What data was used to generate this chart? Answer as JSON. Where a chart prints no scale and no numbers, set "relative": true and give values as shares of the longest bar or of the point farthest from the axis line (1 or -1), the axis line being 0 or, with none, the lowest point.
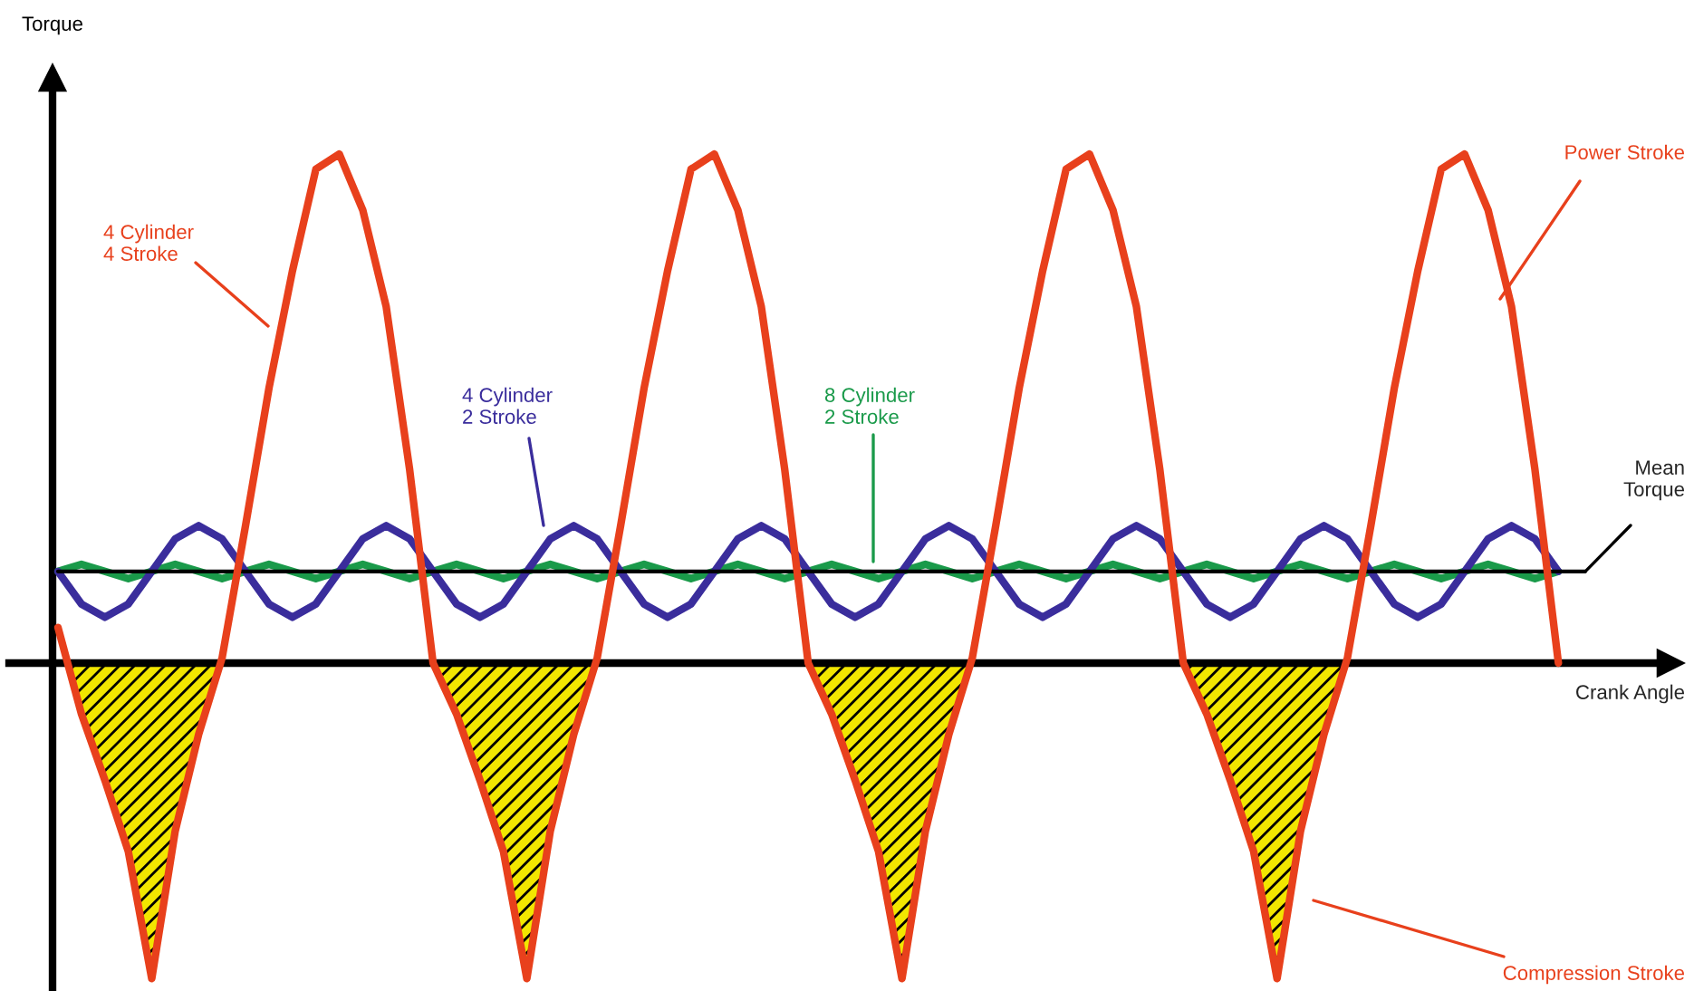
{
  "chart_data": {
    "type": "line",
    "relative": true,
    "xlabel": "Crank Angle",
    "categories": [
      null,
      null,
      null,
      null,
      null,
      null,
      null,
      null,
      null,
      null,
      null,
      null,
      null,
      null,
      null,
      null,
      null,
      null,
      null,
      null,
      null,
      null,
      null,
      null,
      null,
      null,
      null,
      null,
      null,
      null,
      null,
      null,
      null,
      null,
      null,
      null,
      null,
      null,
      null,
      null,
      null,
      null,
      null,
      null,
      null,
      null,
      null,
      null,
      null,
      null,
      null,
      null,
      null,
      null,
      null,
      null,
      null,
      null,
      null,
      null,
      null,
      null,
      null,
      null,
      null
    ],
    "series": [
      {
        "name": "8 Cylinder\n2 Stroke",
        "color": "#1a9a4a",
        "values": [
          0.18,
          0.194,
          0.18,
          0.166,
          0.18,
          0.194,
          0.18,
          0.166,
          0.18,
          0.194,
          0.18,
          0.166,
          0.18,
          0.194,
          0.18,
          0.166,
          0.18,
          0.194,
          0.18,
          0.166,
          0.18,
          0.194,
          0.18,
          0.166,
          0.18,
          0.194,
          0.18,
          0.166,
          0.18,
          0.194,
          0.18,
          0.166,
          0.18,
          0.194,
          0.18,
          0.166,
          0.18,
          0.194,
          0.18,
          0.166,
          0.18,
          0.194,
          0.18,
          0.166,
          0.18,
          0.194,
          0.18,
          0.166,
          0.18,
          0.194,
          0.18,
          0.166,
          0.18,
          0.194,
          0.18,
          0.166,
          0.18,
          0.194,
          0.18,
          0.166,
          0.18,
          0.194,
          0.18,
          0.166,
          0.18
        ]
      },
      {
        "name": "4 Cylinder\n2 Stroke",
        "color": "#3a2d9c",
        "values": [
          0.18,
          0.116,
          0.09,
          0.116,
          0.18,
          0.244,
          0.27,
          0.244,
          0.18,
          0.116,
          0.09,
          0.116,
          0.18,
          0.244,
          0.27,
          0.244,
          0.18,
          0.116,
          0.09,
          0.116,
          0.18,
          0.244,
          0.27,
          0.244,
          0.18,
          0.116,
          0.09,
          0.116,
          0.18,
          0.244,
          0.27,
          0.244,
          0.18,
          0.116,
          0.09,
          0.116,
          0.18,
          0.244,
          0.27,
          0.244,
          0.18,
          0.116,
          0.09,
          0.116,
          0.18,
          0.244,
          0.27,
          0.244,
          0.18,
          0.116,
          0.09,
          0.116,
          0.18,
          0.244,
          0.27,
          0.244,
          0.18,
          0.116,
          0.09,
          0.116,
          0.18,
          0.244,
          0.27,
          0.244,
          0.18
        ]
      },
      {
        "name": "4 Cylinder\n4 Stroke",
        "color": "#e8401c",
        "values": [
          0.07,
          -0.1,
          -0.23,
          -0.37,
          -0.62,
          -0.33,
          -0.14,
          0.01,
          0.27,
          0.54,
          0.77,
          0.97,
          1,
          0.89,
          0.7,
          0.38,
          0,
          -0.1,
          -0.23,
          -0.37,
          -0.62,
          -0.33,
          -0.14,
          0.01,
          0.27,
          0.54,
          0.77,
          0.97,
          1,
          0.89,
          0.7,
          0.38,
          0,
          -0.1,
          -0.23,
          -0.37,
          -0.62,
          -0.33,
          -0.14,
          0.01,
          0.27,
          0.54,
          0.77,
          0.97,
          1,
          0.89,
          0.7,
          0.38,
          0,
          -0.1,
          -0.23,
          -0.37,
          -0.62,
          -0.33,
          -0.14,
          0.01,
          0.27,
          0.54,
          0.77,
          0.97,
          1,
          0.89,
          0.7,
          0.38,
          0
        ]
      }
    ],
    "ref_lines": [
      {
        "axis": "y",
        "value": 0.18,
        "label": "Mean\nTorque",
        "color": "#000000"
      }
    ],
    "annotations": [
      "Power Stroke",
      "Compression Stroke",
      "Torque"
    ],
    "legend": false
  }
}
